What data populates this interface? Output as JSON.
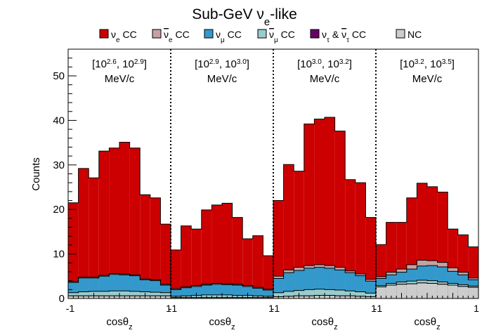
{
  "chart_data": {
    "type": "stacked-histogram",
    "title": {
      "main": "Sub-GeV",
      "nu": "ν",
      "sub": "e",
      "rest": "-like"
    },
    "ylabel": "Counts",
    "ylim": [
      0,
      56
    ],
    "yticks": [
      0,
      10,
      20,
      30,
      40,
      50
    ],
    "colors": {
      "nue_cc": "#cc0000",
      "nuebar_cc": "#c8a0a0",
      "numu_cc": "#3399cc",
      "numubar_cc": "#99cccc",
      "nutau_cc": "#660066",
      "nc": "#cccccc"
    },
    "legend": [
      {
        "key": "nue_cc",
        "parts": [
          {
            "t": "ν"
          },
          {
            "t": "e",
            "sub": true
          },
          {
            "t": " CC"
          }
        ]
      },
      {
        "key": "nuebar_cc",
        "parts": [
          {
            "t": "ν",
            "bar": true
          },
          {
            "t": "e",
            "sub": true
          },
          {
            "t": " CC"
          }
        ]
      },
      {
        "key": "numu_cc",
        "parts": [
          {
            "t": "ν"
          },
          {
            "t": "μ",
            "sub": true
          },
          {
            "t": " CC"
          }
        ]
      },
      {
        "key": "numubar_cc",
        "parts": [
          {
            "t": "ν",
            "bar": true
          },
          {
            "t": "μ",
            "sub": true
          },
          {
            "t": " CC"
          }
        ]
      },
      {
        "key": "nutau_cc",
        "parts": [
          {
            "t": "ν"
          },
          {
            "t": "τ",
            "sub": true
          },
          {
            "t": " & "
          },
          {
            "t": "ν",
            "bar": true
          },
          {
            "t": "τ",
            "sub": true
          },
          {
            "t": " CC"
          }
        ]
      },
      {
        "key": "nc",
        "parts": [
          {
            "t": "NC"
          }
        ]
      }
    ],
    "xlim_per_panel": [
      -1,
      1
    ],
    "xlabel_parts": [
      {
        "t": "cosθ"
      },
      {
        "t": "z",
        "sub": true
      }
    ],
    "panels": [
      {
        "label": {
          "lo_base": "10",
          "lo_exp": "2.6",
          "hi_base": "10",
          "hi_exp": "2.9",
          "unit": "MeV/c"
        },
        "xtick_left": "-1",
        "xtick_right": "1",
        "stack_tops": {
          "nc": [
            0.6,
            0.6,
            0.6,
            0.6,
            0.6,
            0.6,
            0.6,
            0.6,
            0.6,
            0.6
          ],
          "nutau_cc": [
            0.6,
            0.6,
            0.6,
            0.6,
            0.6,
            0.6,
            0.6,
            0.6,
            0.6,
            0.6
          ],
          "numubar_cc": [
            1.3,
            1.5,
            1.6,
            1.6,
            1.7,
            1.7,
            1.6,
            1.5,
            1.4,
            1.3
          ],
          "numu_cc": [
            3.6,
            4.6,
            4.6,
            5.0,
            5.4,
            5.3,
            5.1,
            4.2,
            4.0,
            3.0
          ],
          "nuebar_cc": [
            3.8,
            4.8,
            4.8,
            5.2,
            5.6,
            5.5,
            5.3,
            4.4,
            4.2,
            3.2
          ],
          "nue_cc": [
            21.5,
            29.2,
            27.1,
            33.1,
            33.8,
            35.1,
            33.8,
            23.3,
            22.6,
            16.7
          ]
        }
      },
      {
        "label": {
          "lo_base": "10",
          "lo_exp": "2.9",
          "hi_base": "10",
          "hi_exp": "3.0",
          "unit": "MeV/c"
        },
        "xtick_left": "-1",
        "xtick_right": "1",
        "stack_tops": {
          "nc": [
            0.2,
            0.2,
            0.2,
            0.2,
            0.2,
            0.2,
            0.2,
            0.2,
            0.2,
            0.2
          ],
          "nutau_cc": [
            0.2,
            0.2,
            0.2,
            0.2,
            0.2,
            0.2,
            0.2,
            0.2,
            0.2,
            0.2
          ],
          "numubar_cc": [
            0.5,
            0.6,
            0.7,
            0.8,
            0.8,
            0.8,
            0.7,
            0.7,
            0.6,
            0.5
          ],
          "numu_cc": [
            2.0,
            2.4,
            2.7,
            3.0,
            3.2,
            3.1,
            3.0,
            2.7,
            2.3,
            1.9
          ],
          "nuebar_cc": [
            2.2,
            2.6,
            2.9,
            3.2,
            3.4,
            3.3,
            3.2,
            2.9,
            2.5,
            2.1
          ],
          "nue_cc": [
            10.9,
            16.3,
            15.6,
            19.9,
            21.0,
            21.4,
            18.2,
            13.4,
            14.1,
            9.6
          ]
        }
      },
      {
        "label": {
          "lo_base": "10",
          "lo_exp": "3.0",
          "hi_base": "10",
          "hi_exp": "3.2",
          "unit": "MeV/c"
        },
        "xtick_left": "-1",
        "xtick_right": "1",
        "stack_tops": {
          "nc": [
            0.4,
            0.5,
            0.6,
            0.6,
            0.7,
            0.7,
            0.6,
            0.6,
            0.5,
            0.4
          ],
          "nutau_cc": [
            0.4,
            0.5,
            0.6,
            0.6,
            0.7,
            0.7,
            0.6,
            0.6,
            0.5,
            0.4
          ],
          "numubar_cc": [
            1.3,
            1.6,
            1.8,
            2.0,
            2.1,
            2.0,
            1.9,
            1.7,
            1.5,
            1.2
          ],
          "numu_cc": [
            4.5,
            5.8,
            6.3,
            6.8,
            7.0,
            6.8,
            6.4,
            5.8,
            5.1,
            3.9
          ],
          "nuebar_cc": [
            5.0,
            6.4,
            7.0,
            7.4,
            7.6,
            7.4,
            7.0,
            6.2,
            5.5,
            4.3
          ],
          "nue_cc": [
            22.0,
            30.1,
            28.6,
            39.2,
            40.3,
            40.7,
            37.6,
            26.7,
            26.0,
            18.2
          ]
        }
      },
      {
        "label": {
          "lo_base": "10",
          "lo_exp": "3.2",
          "hi_base": "10",
          "hi_exp": "3.5",
          "unit": "MeV/c"
        },
        "xtick_left": "-1",
        "xtick_right": "1",
        "stack_tops": {
          "nc": [
            2.6,
            3.0,
            3.2,
            3.3,
            3.5,
            3.4,
            3.2,
            3.0,
            2.7,
            2.5
          ],
          "nutau_cc": [
            2.6,
            3.0,
            3.2,
            3.3,
            3.5,
            3.4,
            3.2,
            3.0,
            2.7,
            2.5
          ],
          "numubar_cc": [
            2.9,
            3.4,
            3.7,
            3.9,
            4.1,
            4.0,
            3.7,
            3.4,
            3.1,
            2.8
          ],
          "numu_cc": [
            4.5,
            5.3,
            5.9,
            6.6,
            7.3,
            7.4,
            7.1,
            6.1,
            5.3,
            4.2
          ],
          "nuebar_cc": [
            4.9,
            5.9,
            6.6,
            7.6,
            8.6,
            8.5,
            8.1,
            6.9,
            5.9,
            4.6
          ],
          "nue_cc": [
            12.1,
            17.1,
            17.1,
            22.6,
            25.9,
            25.1,
            23.9,
            15.6,
            14.3,
            11.6
          ]
        }
      }
    ]
  }
}
